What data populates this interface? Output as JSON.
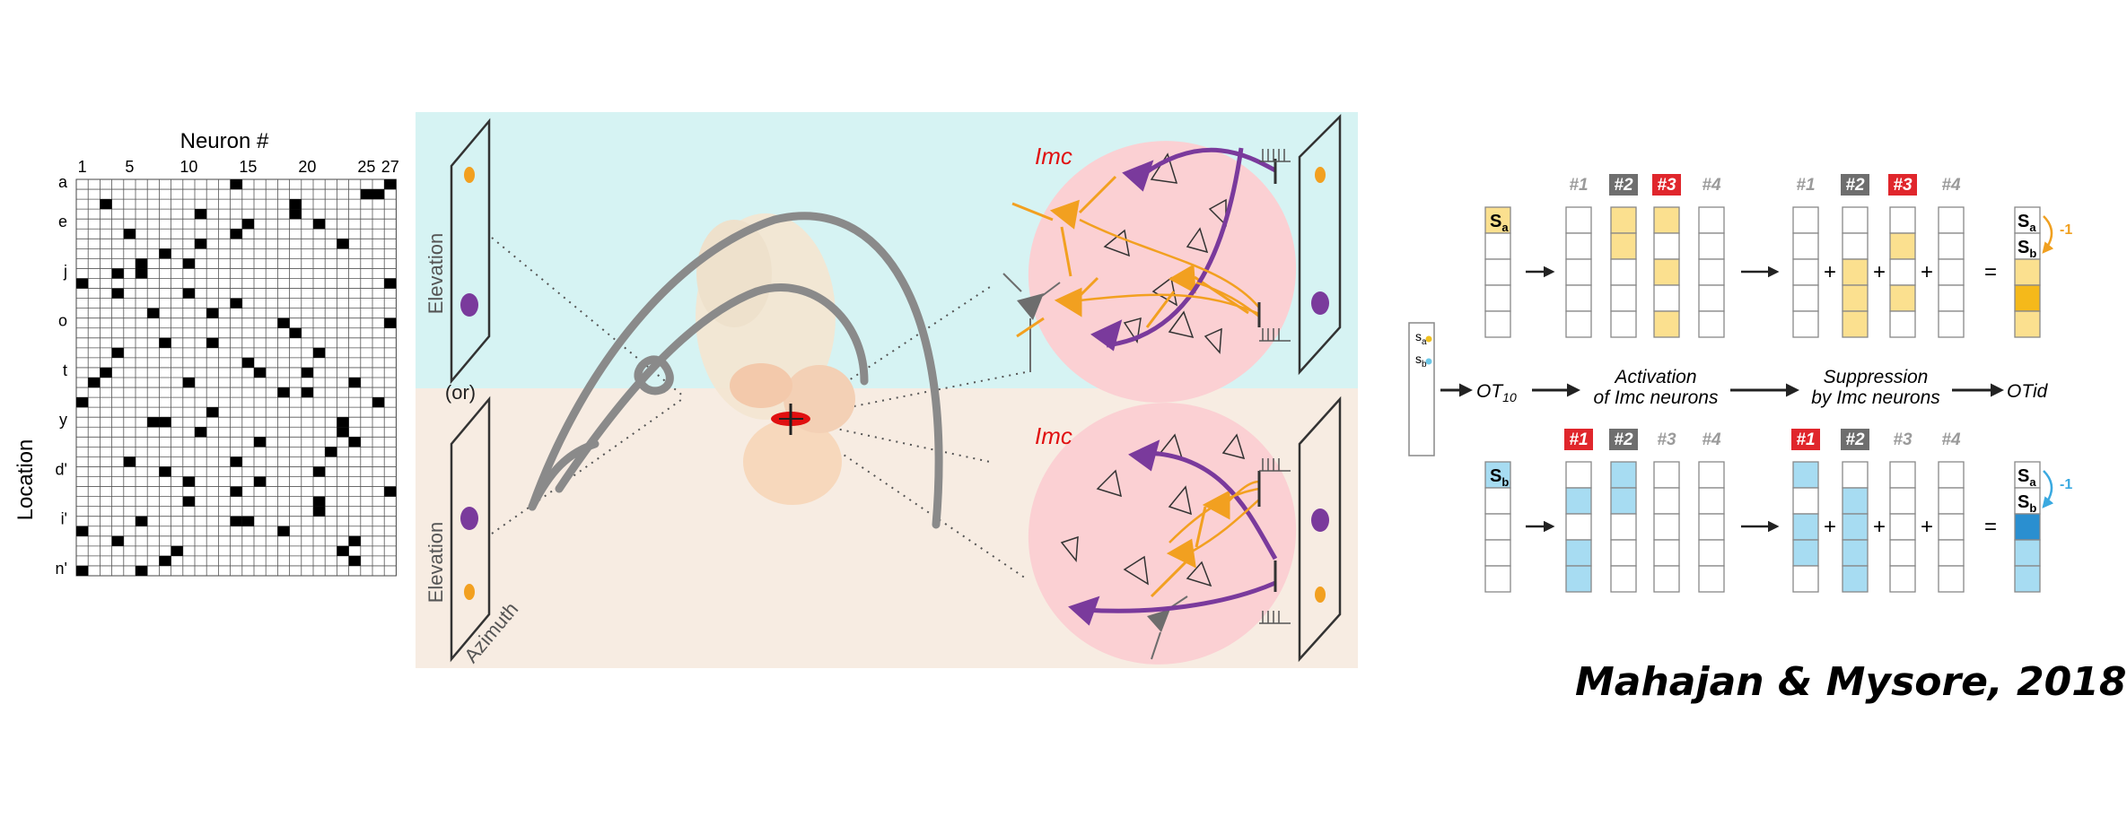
{
  "matrix": {
    "title": "Neuron #",
    "ylabel": "Location",
    "col_labels": [
      "1",
      "5",
      "10",
      "15",
      "20",
      "25",
      "27"
    ],
    "col_label_idx": [
      0,
      4,
      9,
      14,
      19,
      24,
      26
    ],
    "row_labels": [
      "a",
      "e",
      "j",
      "o",
      "t",
      "y",
      "d'",
      "i'",
      "n'"
    ],
    "row_label_idx": [
      0,
      4,
      9,
      14,
      19,
      24,
      29,
      34,
      39
    ],
    "rows": 40,
    "cols": 27,
    "filled": [
      [
        0,
        13
      ],
      [
        0,
        26
      ],
      [
        1,
        24
      ],
      [
        1,
        25
      ],
      [
        2,
        2
      ],
      [
        2,
        18
      ],
      [
        3,
        10
      ],
      [
        3,
        18
      ],
      [
        4,
        14
      ],
      [
        4,
        20
      ],
      [
        5,
        4
      ],
      [
        5,
        13
      ],
      [
        6,
        10
      ],
      [
        6,
        22
      ],
      [
        7,
        7
      ],
      [
        8,
        5
      ],
      [
        8,
        9
      ],
      [
        9,
        3
      ],
      [
        9,
        5
      ],
      [
        10,
        0
      ],
      [
        10,
        26
      ],
      [
        11,
        3
      ],
      [
        11,
        9
      ],
      [
        12,
        13
      ],
      [
        13,
        6
      ],
      [
        13,
        11
      ],
      [
        14,
        17
      ],
      [
        14,
        26
      ],
      [
        15,
        18
      ],
      [
        16,
        7
      ],
      [
        16,
        11
      ],
      [
        17,
        3
      ],
      [
        17,
        20
      ],
      [
        18,
        14
      ],
      [
        19,
        2
      ],
      [
        19,
        15
      ],
      [
        19,
        19
      ],
      [
        20,
        1
      ],
      [
        20,
        9
      ],
      [
        20,
        23
      ],
      [
        21,
        17
      ],
      [
        21,
        19
      ],
      [
        22,
        0
      ],
      [
        22,
        25
      ],
      [
        23,
        11
      ],
      [
        24,
        6
      ],
      [
        24,
        7
      ],
      [
        24,
        22
      ],
      [
        25,
        10
      ],
      [
        25,
        22
      ],
      [
        26,
        15
      ],
      [
        26,
        23
      ],
      [
        27,
        21
      ],
      [
        28,
        4
      ],
      [
        28,
        13
      ],
      [
        29,
        7
      ],
      [
        29,
        20
      ],
      [
        30,
        9
      ],
      [
        30,
        15
      ],
      [
        31,
        13
      ],
      [
        31,
        26
      ],
      [
        32,
        9
      ],
      [
        32,
        20
      ],
      [
        33,
        20
      ],
      [
        34,
        5
      ],
      [
        34,
        13
      ],
      [
        34,
        14
      ],
      [
        35,
        0
      ],
      [
        35,
        17
      ],
      [
        36,
        3
      ],
      [
        36,
        23
      ],
      [
        37,
        8
      ],
      [
        37,
        22
      ],
      [
        38,
        7
      ],
      [
        38,
        23
      ],
      [
        39,
        0
      ],
      [
        39,
        5
      ]
    ]
  },
  "diagram": {
    "imc_top": "Imc",
    "imc_bottom": "Imc",
    "elevation_top": "Elevation",
    "elevation_bottom": "Elevation",
    "or_label": "(or)",
    "azimuth": "Azimuth",
    "colors": {
      "bg_top": "#d6f3f3",
      "bg_bottom": "#f7ece2",
      "imc_fill": "#fbd0d3",
      "orange": "#f2a020",
      "purple": "#7a3a9c",
      "red": "#e01010"
    }
  },
  "flow": {
    "legend": {
      "sa": "s",
      "sa_sub": "a",
      "sb": "s",
      "sb_sub": "b"
    },
    "input_label": "OT",
    "input_sub": "10",
    "activation": [
      "Activation",
      "of Imc neurons"
    ],
    "suppression": [
      "Suppression",
      "by Imc neurons"
    ],
    "output_label": "OTid",
    "badges": [
      "#1",
      "#2",
      "#3",
      "#4"
    ],
    "top_activation_badges": [
      "plain",
      "dark",
      "red",
      "plain"
    ],
    "bottom_activation_badges": [
      "red",
      "dark",
      "plain",
      "plain"
    ],
    "stim_a": "S",
    "stim_a_sub": "a",
    "stim_b": "S",
    "stim_b_sub": "b",
    "minus_one": "-1",
    "top_input_fill": [
      0
    ],
    "top_act": [
      [],
      [
        0,
        1
      ],
      [
        0,
        2,
        4
      ],
      []
    ],
    "top_sup": [
      [],
      [
        2,
        3,
        4
      ],
      [
        1,
        3
      ],
      []
    ],
    "top_result_fill": {
      "0": "white",
      "1": "white",
      "2": "#fbe08f",
      "3": "#f5b91a",
      "4": "#fbe08f"
    },
    "bottom_input_fill": [
      0
    ],
    "bottom_act": [
      [
        1,
        3,
        4
      ],
      [
        0,
        1
      ],
      [],
      []
    ],
    "bottom_sup": [
      [
        0,
        2,
        3
      ],
      [
        1,
        2,
        3,
        4
      ],
      [],
      []
    ],
    "bottom_result_fill": {
      "0": "white",
      "1": "white",
      "2": "#2a8fd0",
      "3": "#a7dcf2",
      "4": "#a7dcf2"
    },
    "colors": {
      "yellow": "#fbe08f",
      "blue": "#a7dcf2",
      "red_badge": "#e0262c",
      "dark_badge": "#6e6e6e",
      "plain_badge": "#9a9a9a",
      "orange": "#f0a020",
      "sky": "#3aa9e0"
    }
  },
  "citation": "Mahajan & Mysore, 2018"
}
